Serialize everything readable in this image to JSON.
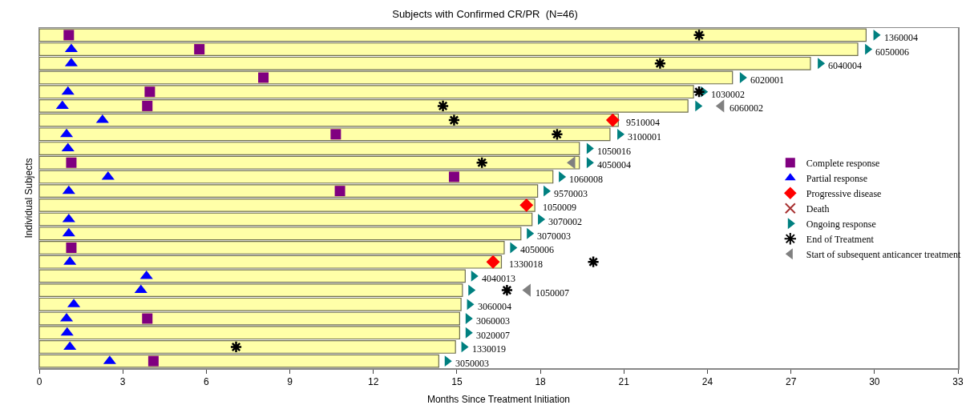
{
  "chart_data": {
    "type": "bar",
    "orientation": "horizontal",
    "title": "Subjects with Confirmed CR/PR  (N=46)",
    "xlabel": "Months Since Treatment Initiation",
    "ylabel": "Individual Subjects",
    "categories": [
      "1360004",
      "6050006",
      "6040004",
      "6020001",
      "1030002",
      "6060002",
      "9510004",
      "3100001",
      "1050016",
      "4050004",
      "1060008",
      "9570003",
      "1050009",
      "3070002",
      "3070003",
      "4050006",
      "1330018",
      "4040013",
      "1050007",
      "3060004",
      "3060003",
      "3020007",
      "1330019",
      "3050003"
    ],
    "values": [
      29.7,
      29.4,
      27.7,
      24.9,
      23.5,
      23.3,
      20.8,
      20.5,
      19.4,
      19.4,
      18.45,
      17.9,
      17.8,
      17.7,
      17.3,
      16.7,
      16.6,
      15.3,
      15.2,
      15.15,
      15.1,
      15.1,
      14.95,
      14.35
    ],
    "color": "#ffffa8",
    "series": [
      {
        "type": "scatter",
        "name": "Complete response",
        "color": "#800080",
        "marker": "square",
        "values": [
          1.06,
          5.75,
          null,
          8.05,
          3.97,
          3.88,
          null,
          10.65,
          null,
          1.15,
          14.9,
          10.8,
          null,
          null,
          null,
          1.15,
          null,
          null,
          null,
          null,
          3.88,
          null,
          null,
          4.1
        ]
      },
      {
        "type": "scatter",
        "name": "Partial response",
        "color": "#0000ff",
        "marker": "triangle",
        "values": [
          null,
          1.15,
          1.15,
          null,
          1.03,
          0.83,
          2.27,
          0.98,
          1.03,
          null,
          2.47,
          1.06,
          null,
          1.06,
          1.06,
          null,
          1.1,
          3.85,
          3.65,
          1.24,
          0.98,
          1.0,
          1.1,
          2.53
        ]
      },
      {
        "type": "scatter",
        "name": "Progressive disease",
        "color": "#ff0000",
        "marker": "diamond",
        "values": [
          null,
          null,
          null,
          null,
          null,
          null,
          20.6,
          null,
          null,
          null,
          null,
          null,
          17.5,
          null,
          null,
          null,
          16.3,
          null,
          null,
          null,
          null,
          null,
          null,
          null
        ]
      },
      {
        "type": "scatter",
        "name": "Death",
        "color": "#a83232",
        "marker": "x",
        "values": [
          null,
          null,
          null,
          null,
          null,
          null,
          null,
          null,
          null,
          null,
          null,
          null,
          null,
          null,
          null,
          null,
          null,
          null,
          null,
          null,
          null,
          null,
          null,
          null
        ]
      },
      {
        "type": "scatter",
        "name": "Ongoing response",
        "color": "#008080",
        "marker": "triangle-right",
        "values": [
          30.05,
          29.75,
          28.05,
          25.25,
          23.85,
          23.65,
          null,
          20.85,
          19.75,
          19.75,
          18.75,
          18.2,
          null,
          18.0,
          17.6,
          17.0,
          null,
          15.6,
          15.5,
          15.45,
          15.4,
          15.4,
          15.25,
          14.65
        ]
      },
      {
        "type": "scatter",
        "name": "End of Treatment",
        "color": "#000000",
        "marker": "cross",
        "values": [
          23.7,
          null,
          22.3,
          null,
          23.7,
          14.5,
          14.9,
          18.6,
          null,
          15.9,
          null,
          null,
          null,
          null,
          null,
          null,
          19.9,
          null,
          16.8,
          null,
          null,
          null,
          7.07,
          null
        ]
      },
      {
        "type": "scatter",
        "name": "Start of subsequent anticancer treatment",
        "color": "#808080",
        "marker": "triangle-left",
        "values": [
          null,
          null,
          null,
          null,
          null,
          24.5,
          null,
          null,
          null,
          19.15,
          null,
          null,
          null,
          null,
          null,
          null,
          null,
          null,
          17.55,
          null,
          null,
          null,
          null,
          null
        ]
      }
    ],
    "xlim": [
      0,
      33
    ],
    "xticks": [
      0,
      3,
      6,
      9,
      12,
      15,
      18,
      21,
      24,
      27,
      30,
      33
    ],
    "tick_labels": "x",
    "grid": false,
    "legend": "right",
    "data_labels": false
  }
}
